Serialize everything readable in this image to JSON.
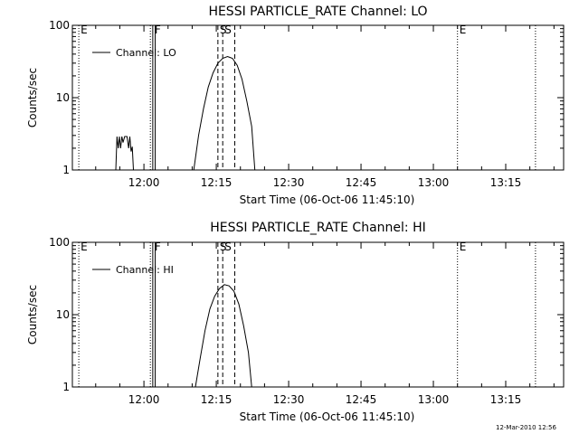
{
  "footer": {
    "timestamp": "12-Mar-2010 12:56"
  },
  "chart_data": [
    {
      "type": "line",
      "title": "HESSI PARTICLE_RATE Channel: LO",
      "xlabel": "Start Time (06-Oct-06 11:45:10)",
      "ylabel": "Counts/sec",
      "yscale": "log",
      "ylim": [
        1,
        100
      ],
      "xlim": [
        "11:45:10",
        "13:27:00"
      ],
      "x_ticks": [
        "12:00",
        "12:15",
        "12:30",
        "12:45",
        "13:00",
        "13:15"
      ],
      "y_ticks": [
        "1",
        "10",
        "100"
      ],
      "legend": {
        "position": "top-left",
        "entries": [
          "Channel: LO"
        ]
      },
      "series": [
        {
          "name": "Channel: LO",
          "points": [
            [
              "11:54:10",
              1.0
            ],
            [
              "11:54:25",
              2.9
            ],
            [
              "11:54:40",
              2.0
            ],
            [
              "11:54:55",
              2.9
            ],
            [
              "11:55:10",
              2.0
            ],
            [
              "11:55:25",
              2.9
            ],
            [
              "11:55:40",
              2.4
            ],
            [
              "11:56:00",
              2.9
            ],
            [
              "11:56:30",
              2.9
            ],
            [
              "11:56:50",
              2.0
            ],
            [
              "11:57:05",
              2.9
            ],
            [
              "11:57:20",
              1.8
            ],
            [
              "11:57:35",
              2.1
            ],
            [
              "11:57:50",
              1.0
            ],
            [
              "12:10:20",
              1.0
            ],
            [
              "12:11:20",
              3.0
            ],
            [
              "12:12:20",
              7.0
            ],
            [
              "12:13:20",
              14.0
            ],
            [
              "12:14:20",
              22.0
            ],
            [
              "12:15:20",
              30.0
            ],
            [
              "12:16:20",
              35.0
            ],
            [
              "12:17:20",
              37.0
            ],
            [
              "12:18:20",
              35.0
            ],
            [
              "12:19:20",
              28.0
            ],
            [
              "12:20:20",
              18.0
            ],
            [
              "12:21:20",
              9.0
            ],
            [
              "12:22:20",
              4.0
            ],
            [
              "12:23:00",
              1.0
            ]
          ]
        }
      ],
      "markers": [
        {
          "time": "11:46:30",
          "label": "E",
          "style": "dotted"
        },
        {
          "time": "12:01:20",
          "label": "",
          "style": "dotted"
        },
        {
          "time": "12:01:50",
          "label": "F",
          "style": "solid"
        },
        {
          "time": "12:02:20",
          "label": "",
          "style": "solid"
        },
        {
          "time": "12:15:20",
          "label": "S",
          "style": "dashed"
        },
        {
          "time": "12:16:20",
          "label": "S",
          "style": "dashed"
        },
        {
          "time": "12:18:50",
          "label": "",
          "style": "dashed"
        },
        {
          "time": "13:05:00",
          "label": "E",
          "style": "dotted"
        },
        {
          "time": "13:21:10",
          "label": "",
          "style": "dotted"
        }
      ]
    },
    {
      "type": "line",
      "title": "HESSI PARTICLE_RATE Channel: HI",
      "xlabel": "Start Time (06-Oct-06 11:45:10)",
      "ylabel": "Counts/sec",
      "yscale": "log",
      "ylim": [
        1,
        100
      ],
      "xlim": [
        "11:45:10",
        "13:27:00"
      ],
      "x_ticks": [
        "12:00",
        "12:15",
        "12:30",
        "12:45",
        "13:00",
        "13:15"
      ],
      "y_ticks": [
        "1",
        "10",
        "100"
      ],
      "legend": {
        "position": "top-left",
        "entries": [
          "Channel: HI"
        ]
      },
      "series": [
        {
          "name": "Channel: HI",
          "points": [
            [
              "12:10:40",
              1.0
            ],
            [
              "12:11:40",
              2.5
            ],
            [
              "12:12:40",
              6.0
            ],
            [
              "12:13:40",
              12.0
            ],
            [
              "12:14:40",
              18.0
            ],
            [
              "12:15:40",
              23.0
            ],
            [
              "12:16:40",
              26.0
            ],
            [
              "12:17:40",
              25.0
            ],
            [
              "12:18:40",
              21.0
            ],
            [
              "12:19:40",
              14.0
            ],
            [
              "12:20:40",
              7.0
            ],
            [
              "12:21:40",
              3.0
            ],
            [
              "12:22:20",
              1.0
            ]
          ]
        }
      ],
      "markers": [
        {
          "time": "11:46:30",
          "label": "E",
          "style": "dotted"
        },
        {
          "time": "12:01:20",
          "label": "",
          "style": "dotted"
        },
        {
          "time": "12:01:50",
          "label": "F",
          "style": "solid"
        },
        {
          "time": "12:02:20",
          "label": "",
          "style": "solid"
        },
        {
          "time": "12:15:20",
          "label": "S",
          "style": "dashed"
        },
        {
          "time": "12:16:20",
          "label": "S",
          "style": "dashed"
        },
        {
          "time": "12:18:50",
          "label": "",
          "style": "dashed"
        },
        {
          "time": "13:05:00",
          "label": "E",
          "style": "dotted"
        },
        {
          "time": "13:21:10",
          "label": "",
          "style": "dotted"
        }
      ]
    }
  ]
}
